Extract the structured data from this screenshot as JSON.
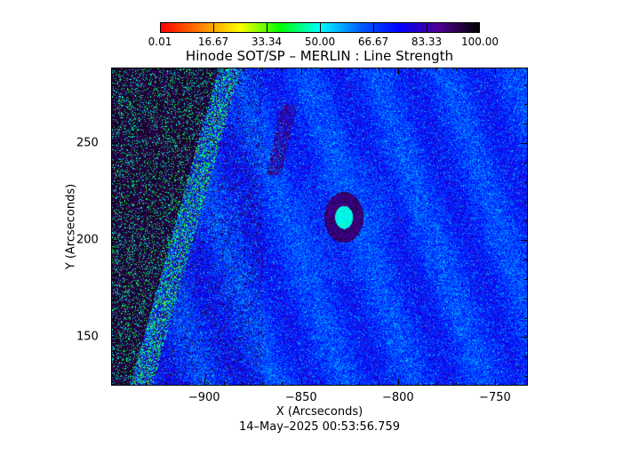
{
  "chart_data": {
    "type": "heatmap",
    "title": "Hinode SOT/SP – MERLIN : Line Strength",
    "xlabel": "X (Arcseconds)",
    "ylabel": "Y (Arcseconds)",
    "xlim": [
      -948,
      -733
    ],
    "ylim": [
      125,
      289
    ],
    "x_ticks": [
      -900,
      -850,
      -800,
      -750
    ],
    "x_tick_labels": [
      "−900",
      "−850",
      "−800",
      "−750"
    ],
    "y_ticks": [
      150,
      200,
      250
    ],
    "y_tick_labels": [
      "150",
      "200",
      "250"
    ],
    "colorbar": {
      "range": [
        0.01,
        100.0
      ],
      "tick_labels": [
        "0.01",
        "16.67",
        "33.34",
        "50.00",
        "66.67",
        "83.33",
        "100.00"
      ],
      "colormap": [
        "#ff0000",
        "#ff8000",
        "#ffff00",
        "#00ff00",
        "#00ffff",
        "#0060ff",
        "#0000ff",
        "#500090",
        "#000000"
      ],
      "placement": "top"
    },
    "timestamp": "14–May–2025 00:53:56.759",
    "features": {
      "sunspot_center": [
        -828,
        212
      ],
      "solar_limb": "left edge"
    },
    "grid": false
  }
}
